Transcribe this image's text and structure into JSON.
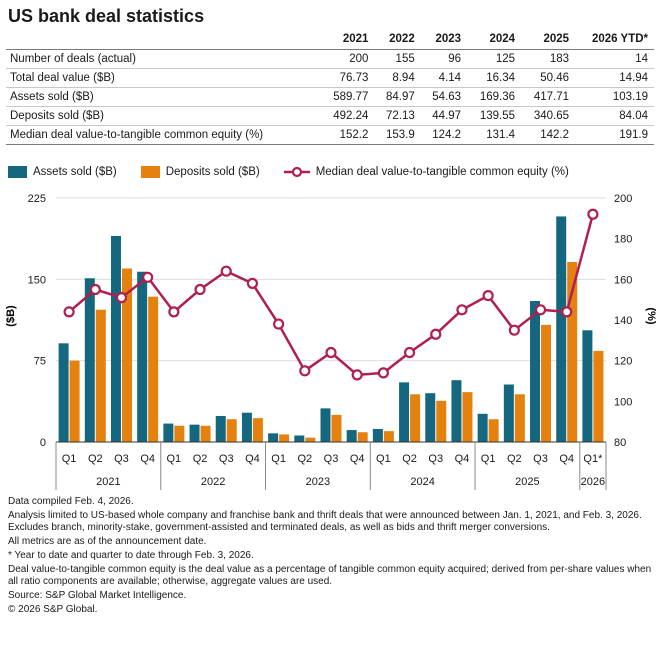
{
  "title": "US bank deal statistics",
  "table": {
    "corner": "",
    "columns": [
      "2021",
      "2022",
      "2023",
      "2024",
      "2025",
      "2026 YTD*"
    ],
    "rows": [
      {
        "label": "Number of deals (actual)",
        "values": [
          "200",
          "155",
          "96",
          "125",
          "183",
          "14"
        ]
      },
      {
        "label": "Total deal value ($B)",
        "values": [
          "76.73",
          "8.94",
          "4.14",
          "16.34",
          "50.46",
          "14.94"
        ]
      },
      {
        "label": "Assets sold ($B)",
        "values": [
          "589.77",
          "84.97",
          "54.63",
          "169.36",
          "417.71",
          "103.19"
        ]
      },
      {
        "label": "Deposits sold ($B)",
        "values": [
          "492.24",
          "72.13",
          "44.97",
          "139.55",
          "340.65",
          "84.04"
        ]
      },
      {
        "label": "Median deal value-to-tangible common equity (%)",
        "values": [
          "152.2",
          "153.9",
          "124.2",
          "131.4",
          "142.2",
          "191.9"
        ]
      }
    ]
  },
  "legend": {
    "assets": "Assets sold ($B)",
    "deposits": "Deposits sold ($B)",
    "median": "Median deal value-to-tangible common equity (%)"
  },
  "colors": {
    "assets": "#14677e",
    "deposits": "#e5820f",
    "median": "#b01f4f",
    "axis": "#555555",
    "grid": "#dddddd"
  },
  "chart_data": {
    "type": "bar",
    "title": "",
    "ylabel": "($B)",
    "y2label": "(%)",
    "ylim": [
      0,
      225
    ],
    "y2lim": [
      80,
      200
    ],
    "yticks": [
      0,
      75,
      150,
      225
    ],
    "y2ticks": [
      80,
      100,
      120,
      140,
      160,
      180,
      200
    ],
    "categories": [
      "Q1",
      "Q2",
      "Q3",
      "Q4",
      "Q1",
      "Q2",
      "Q3",
      "Q4",
      "Q1",
      "Q2",
      "Q3",
      "Q4",
      "Q1",
      "Q2",
      "Q3",
      "Q4",
      "Q1",
      "Q2",
      "Q3",
      "Q4",
      "Q1*"
    ],
    "groups": [
      {
        "label": "2021",
        "count": 4
      },
      {
        "label": "2022",
        "count": 4
      },
      {
        "label": "2023",
        "count": 4
      },
      {
        "label": "2024",
        "count": 4
      },
      {
        "label": "2025",
        "count": 4
      },
      {
        "label": "2026",
        "count": 1
      }
    ],
    "series": [
      {
        "name": "Assets sold ($B)",
        "kind": "bar",
        "axis": "left",
        "values": [
          91,
          151,
          190,
          157,
          17,
          16,
          24,
          27,
          8,
          6,
          31,
          11,
          12,
          55,
          45,
          57,
          26,
          53,
          130,
          208,
          103
        ]
      },
      {
        "name": "Deposits sold ($B)",
        "kind": "bar",
        "axis": "left",
        "values": [
          75,
          122,
          160,
          134,
          15,
          15,
          21,
          22,
          7,
          4,
          25,
          9,
          10,
          44,
          38,
          46,
          21,
          44,
          108,
          166,
          84
        ]
      },
      {
        "name": "Median deal value-to-tangible common equity (%)",
        "kind": "line",
        "axis": "right",
        "values": [
          144,
          155,
          151,
          161,
          144,
          155,
          164,
          158,
          138,
          115,
          124,
          113,
          114,
          124,
          133,
          145,
          152,
          135,
          145,
          144,
          192
        ]
      }
    ]
  },
  "notes": [
    "Data compiled Feb. 4, 2026.",
    "Analysis limited to US-based whole company and franchise bank and thrift deals that were announced between Jan. 1, 2021, and Feb. 3, 2026. Excludes branch, minority-stake, government-assisted and terminated deals, as well as bids and thrift merger conversions.",
    "All metrics are as of the announcement date.",
    "* Year to date and quarter to date through Feb. 3, 2026.",
    "Deal value-to-tangible common equity is the deal value as a percentage of tangible common equity acquired; derived from per-share values when all ratio components are available; otherwise, aggregate values are used.",
    "Source: S&P Global Market Intelligence.",
    "© 2026 S&P Global."
  ]
}
